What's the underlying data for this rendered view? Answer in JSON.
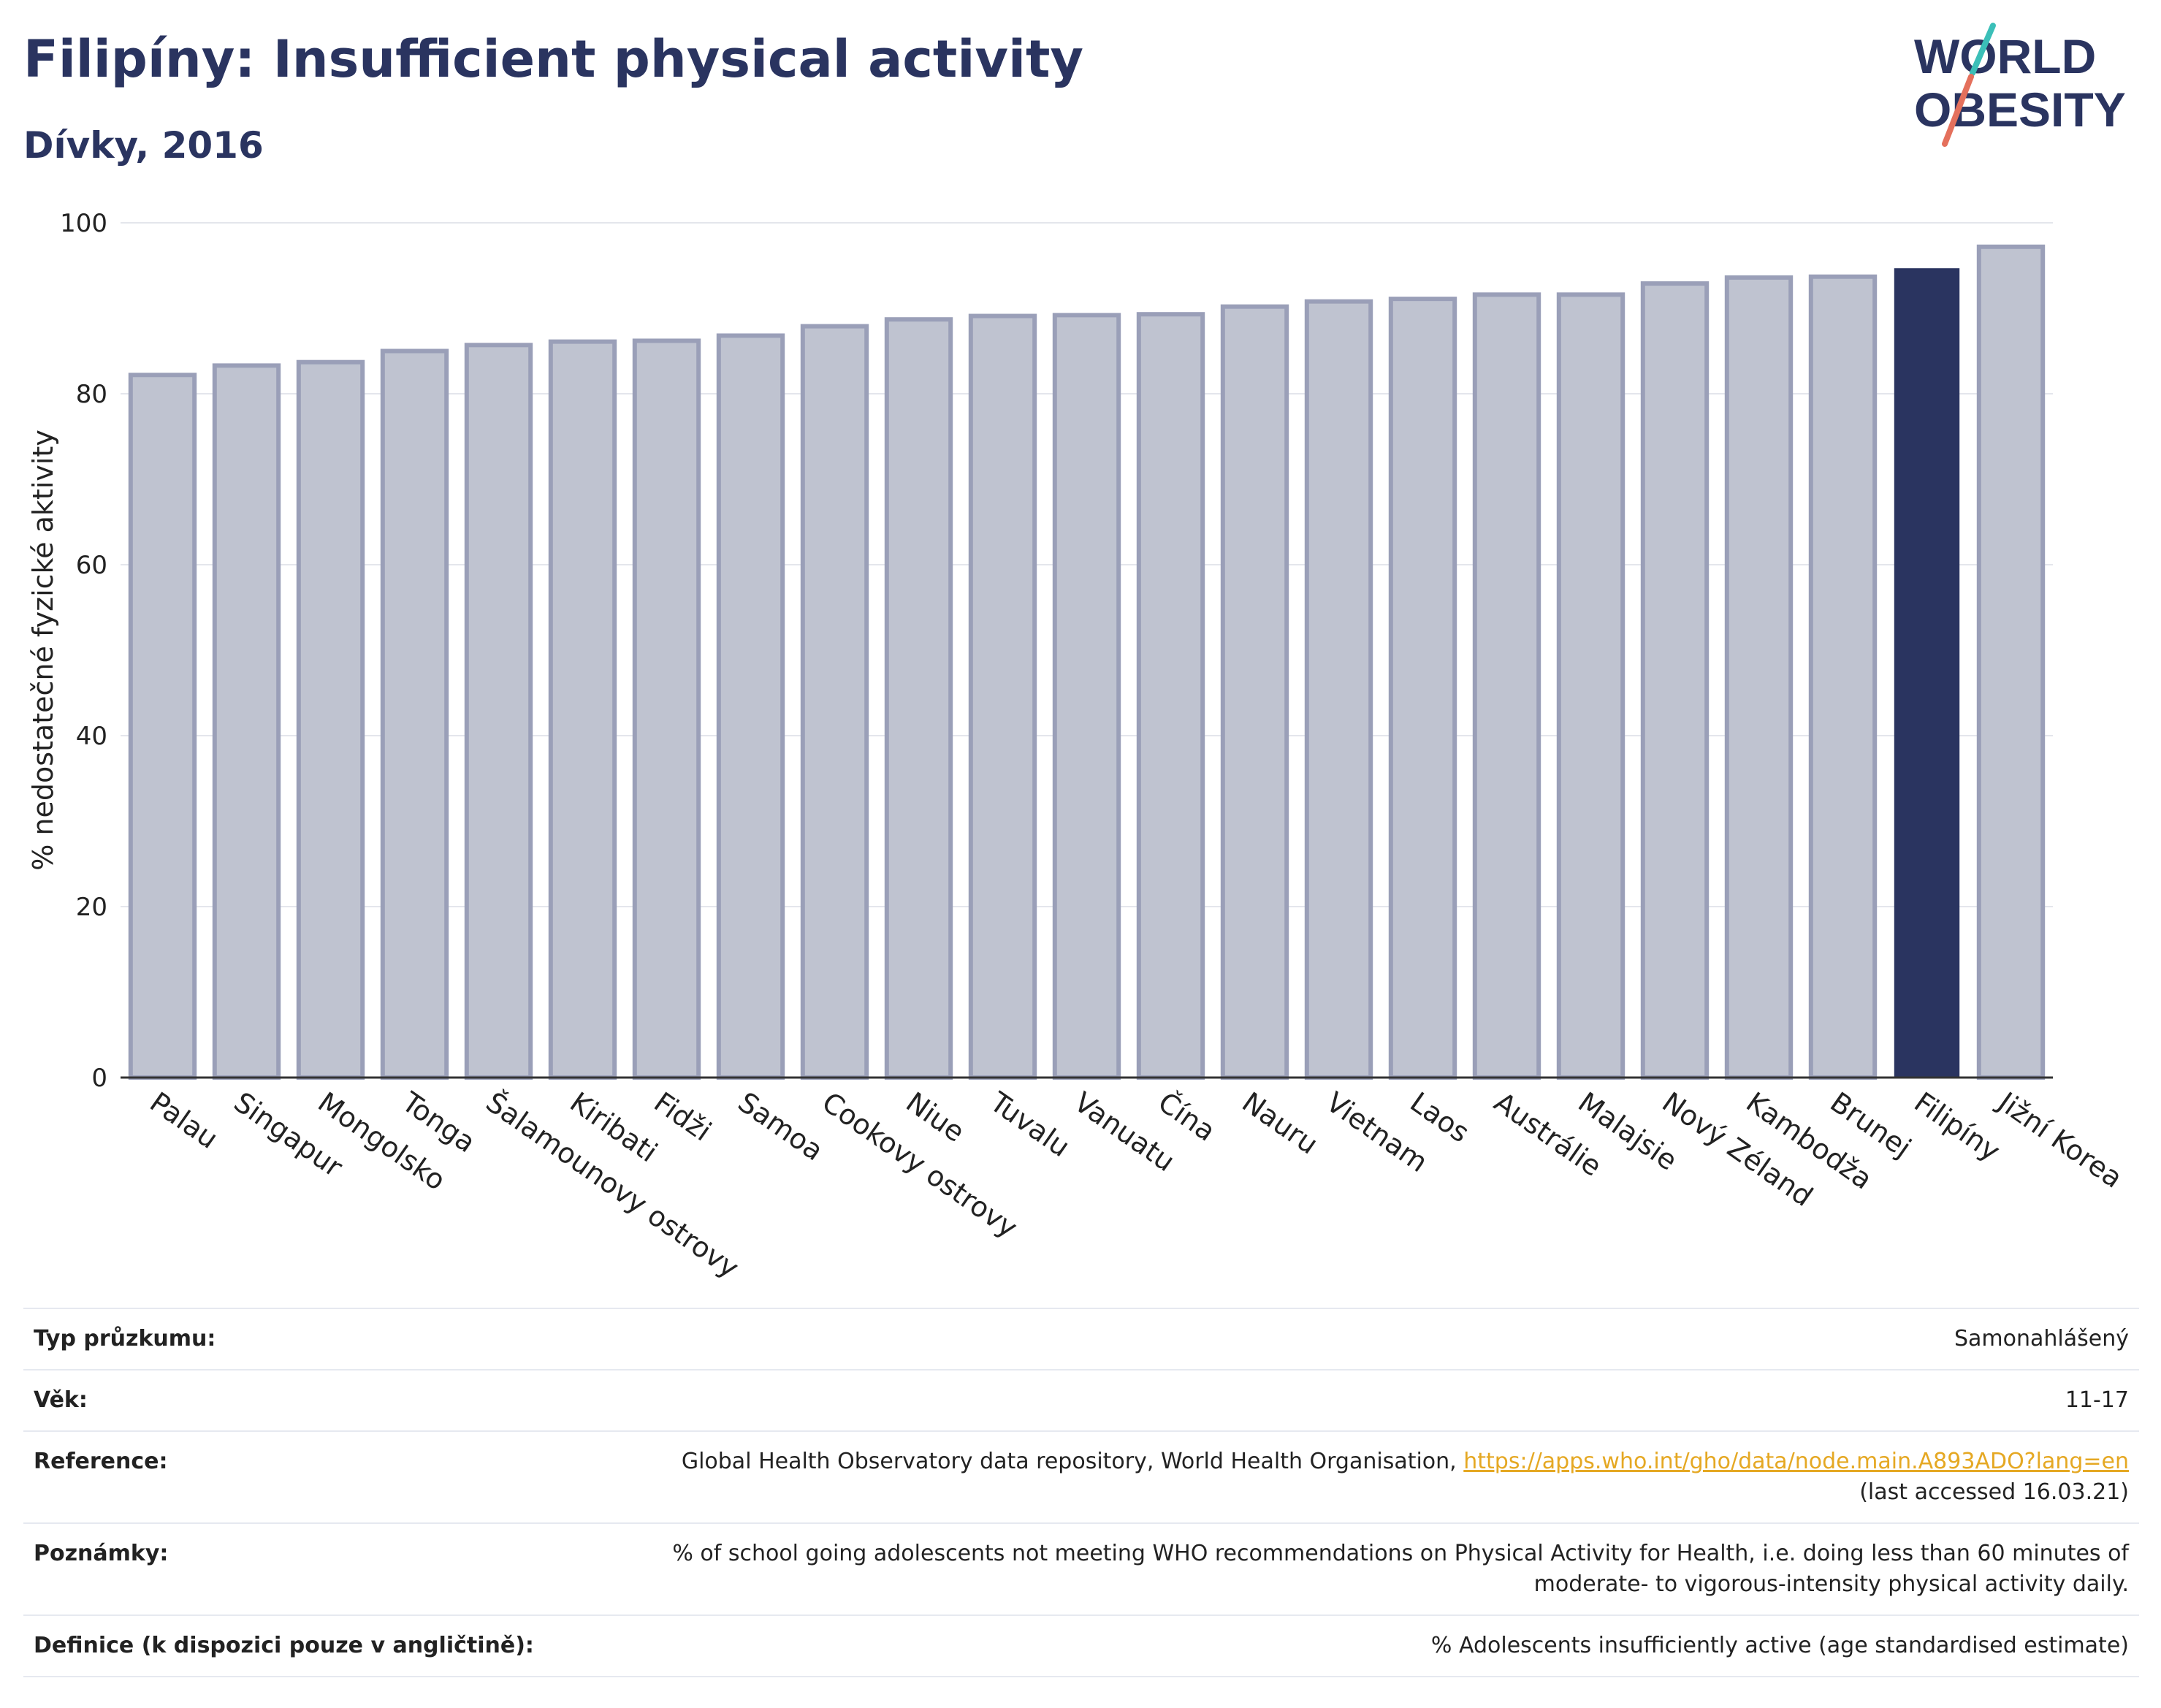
{
  "header": {
    "title": "Filipíny: Insufficient physical activity",
    "subtitle": "Dívky, 2016"
  },
  "logo": {
    "line1": "WORLD",
    "line2": "OBESITY",
    "text_color": "#2a3460",
    "slash_top_color": "#3bbfb8",
    "slash_bottom_color": "#e4705c"
  },
  "chart_data": {
    "type": "bar",
    "categories": [
      "Palau",
      "Singapur",
      "Mongolsko",
      "Tonga",
      "Šalamounovy ostrovy",
      "Kiribati",
      "Fidži",
      "Samoa",
      "Cookovy ostrovy",
      "Niue",
      "Tuvalu",
      "Vanuatu",
      "Čína",
      "Nauru",
      "Vietnam",
      "Laos",
      "Austrálie",
      "Malajsie",
      "Nový Zéland",
      "Kambodža",
      "Brunej",
      "Filipíny",
      "Jižní Korea"
    ],
    "values": [
      82.2,
      83.3,
      83.7,
      85.0,
      85.7,
      86.1,
      86.2,
      86.8,
      87.9,
      88.7,
      89.1,
      89.2,
      89.3,
      90.2,
      90.8,
      91.1,
      91.6,
      91.6,
      92.9,
      93.6,
      93.7,
      94.6,
      97.2
    ],
    "highlight": "Filipíny",
    "ylabel": "% nedostatečné fyzické aktivity",
    "xlabel": "",
    "ylim": [
      0,
      100
    ],
    "yticks": [
      0,
      20,
      40,
      60,
      80,
      100
    ],
    "grid": true,
    "colors": {
      "bar": "#bfc3d0",
      "bar_border": "#9a9fb8",
      "highlight": "#2a3460",
      "grid": "#e4e6ec",
      "axis": "#333333"
    }
  },
  "info": [
    {
      "label": "Typ průzkumu:",
      "value": "Samonahlášený"
    },
    {
      "label": "Věk:",
      "value": "11-17"
    },
    {
      "label": "Reference:",
      "value": "Global Health Observatory data repository, World Health Organisation,",
      "link": "https://apps.who.int/gho/data/node.main.A893ADO?lang=en",
      "value2": "(last accessed 16.03.21)"
    },
    {
      "label": "Poznámky:",
      "value": "% of school going adolescents not meeting WHO recommendations on Physical Activity for Health, i.e. doing less than 60 minutes of",
      "value2": "moderate- to vigorous-intensity physical activity daily."
    },
    {
      "label": "Definice (k dispozici pouze v angličtině):",
      "value": "% Adolescents insufficiently active (age standardised estimate)"
    }
  ]
}
